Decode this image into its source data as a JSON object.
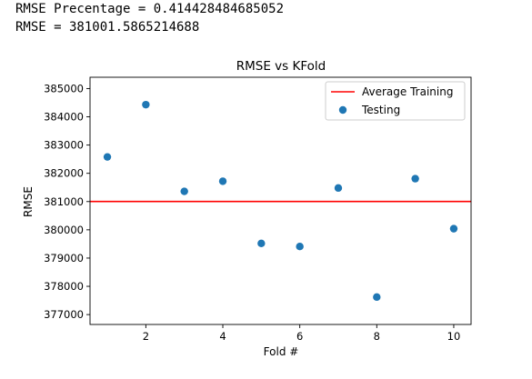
{
  "output": {
    "line1": "RMSE Precentage = 0.414428484685052",
    "line2": "RMSE = 381001.5865214688"
  },
  "chart_data": {
    "type": "scatter",
    "title": "RMSE vs KFold",
    "xlabel": "Fold #",
    "ylabel": "RMSE",
    "xlim": [
      0.55,
      10.45
    ],
    "ylim": [
      376650,
      385400
    ],
    "xticks": [
      2,
      4,
      6,
      8,
      10
    ],
    "xtick_labels": [
      "2",
      "4",
      "6",
      "8",
      "10"
    ],
    "yticks": [
      377000,
      378000,
      379000,
      380000,
      381000,
      382000,
      383000,
      384000,
      385000
    ],
    "ytick_labels": [
      "377000",
      "378000",
      "379000",
      "380000",
      "381000",
      "382000",
      "383000",
      "384000",
      "385000"
    ],
    "grid": false,
    "legend_position": "top-right",
    "series": [
      {
        "name": "Average Training",
        "kind": "hline",
        "value": 381001.5865214688,
        "color": "#ff0000"
      },
      {
        "name": "Testing",
        "kind": "scatter",
        "color": "#1f77b4",
        "x": [
          1,
          2,
          3,
          4,
          5,
          6,
          7,
          8,
          9,
          10
        ],
        "y": [
          382580,
          384430,
          381360,
          381720,
          379520,
          379410,
          381480,
          377620,
          381810,
          380040
        ]
      }
    ]
  }
}
